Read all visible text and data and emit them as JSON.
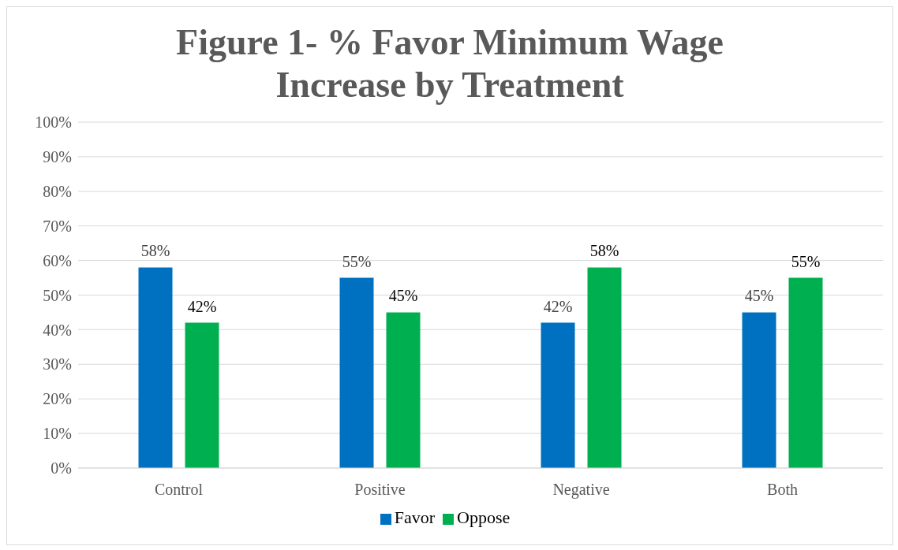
{
  "chart_data": {
    "type": "bar",
    "title": "Figure 1- % Favor Minimum Wage Increase by Treatment",
    "categories": [
      "Control",
      "Positive",
      "Negative",
      "Both"
    ],
    "series": [
      {
        "name": "Favor",
        "color": "#0070c0",
        "values": [
          58,
          55,
          42,
          45
        ],
        "value_labels": [
          "58%",
          "55%",
          "42%",
          "45%"
        ]
      },
      {
        "name": "Oppose",
        "color": "#00b050",
        "values": [
          42,
          45,
          58,
          55
        ],
        "value_labels": [
          "42%",
          "45%",
          "58%",
          "55%"
        ]
      }
    ],
    "ylim": [
      0,
      100
    ],
    "yticks": [
      {
        "value": 0,
        "label": "0%"
      },
      {
        "value": 10,
        "label": "10%"
      },
      {
        "value": 20,
        "label": "20%"
      },
      {
        "value": 30,
        "label": "30%"
      },
      {
        "value": 40,
        "label": "40%"
      },
      {
        "value": 50,
        "label": "50%"
      },
      {
        "value": 60,
        "label": "60%"
      },
      {
        "value": 70,
        "label": "70%"
      },
      {
        "value": 80,
        "label": "80%"
      },
      {
        "value": 90,
        "label": "90%"
      },
      {
        "value": 100,
        "label": "100%"
      }
    ],
    "grid": "y",
    "legend": "bottom"
  }
}
